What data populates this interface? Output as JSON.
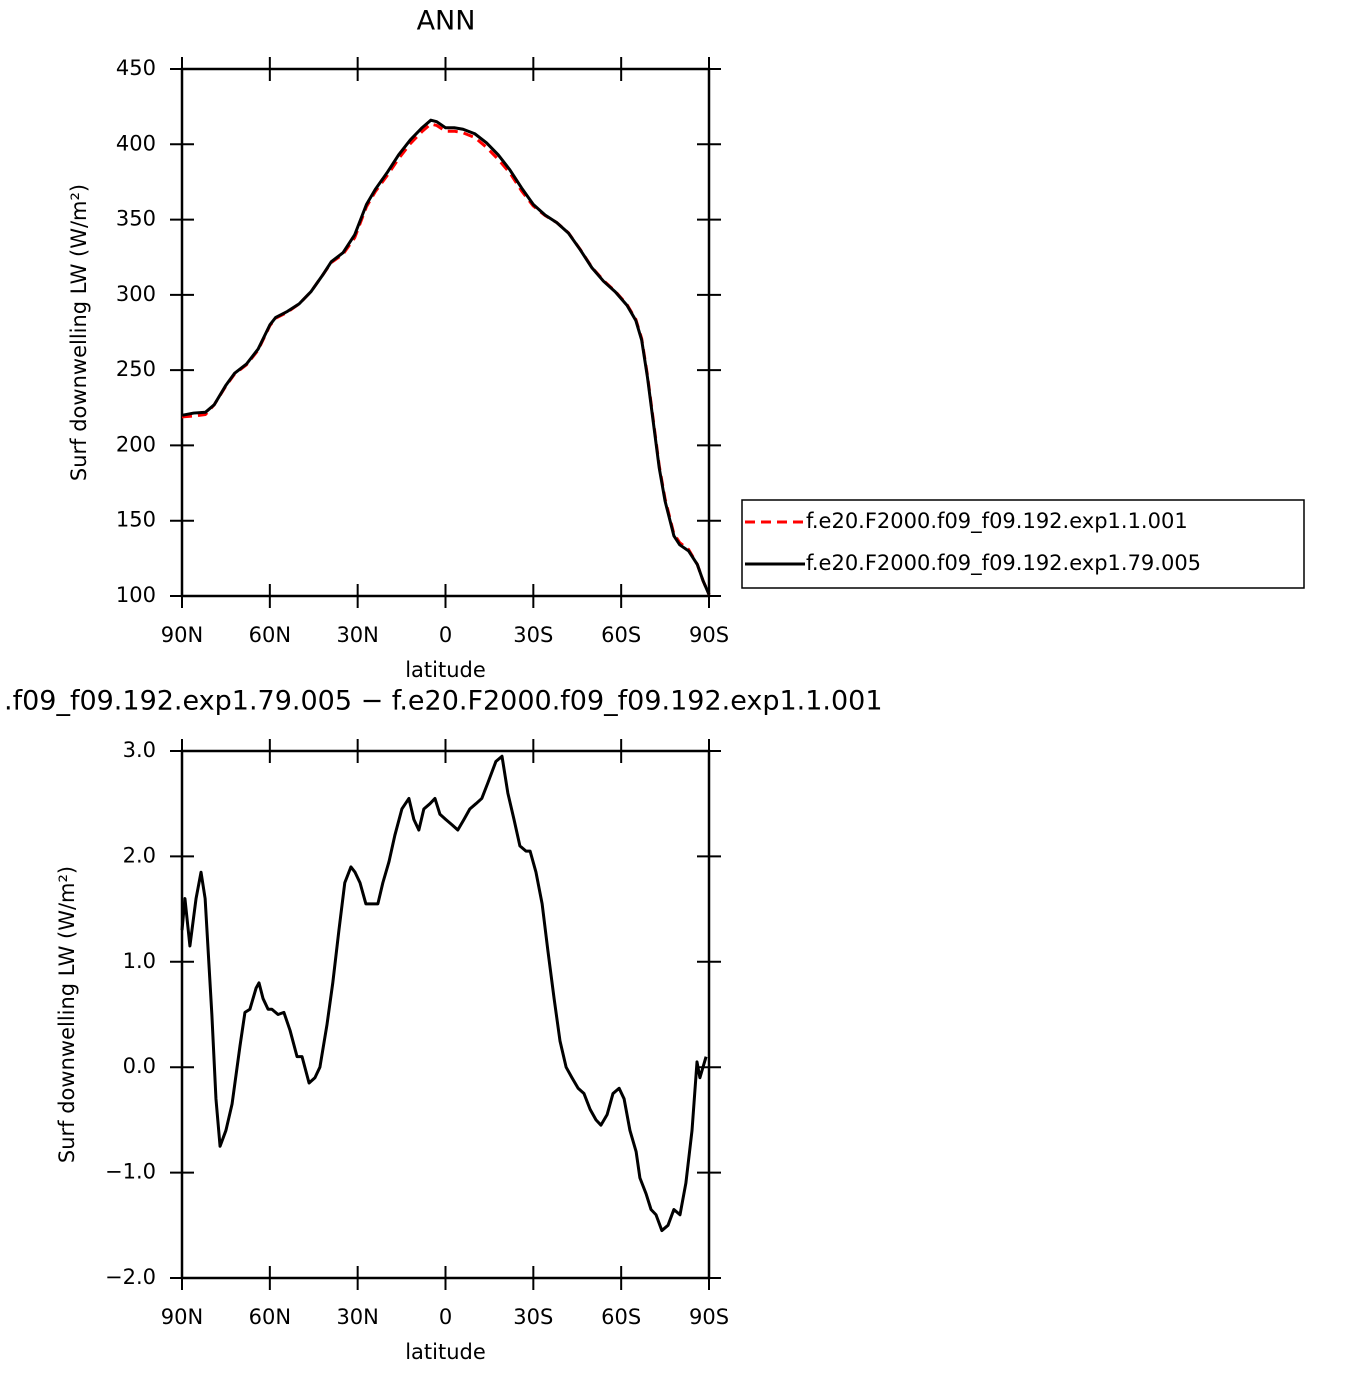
{
  "chart_data": [
    {
      "type": "line",
      "title": "ANN",
      "x_label": "latitude",
      "y_label": "Surf downwelling LW (W/m²)",
      "x": [
        90,
        86,
        82,
        79,
        75,
        72,
        68,
        64,
        60,
        58,
        54,
        50,
        46,
        42,
        39,
        35,
        31,
        27,
        24,
        20,
        16,
        12,
        8,
        5,
        3,
        0,
        -3,
        -6,
        -10,
        -14,
        -18,
        -22,
        -26,
        -30,
        -34,
        -38,
        -42,
        -46,
        -50,
        -54,
        -58,
        -62,
        -65,
        -67,
        -69,
        -71,
        -73,
        -75,
        -78,
        -80,
        -83,
        -86,
        -88,
        -90
      ],
      "series": [
        {
          "name": "f.e20.F2000.f09_f09.192.exp1.1.001",
          "color": "#ff0000",
          "dashed": true,
          "values": [
            219,
            219.5,
            220.5,
            227,
            239.5,
            247.5,
            253.5,
            263.3,
            279.5,
            284.5,
            288.5,
            294,
            302,
            313,
            321.5,
            327,
            338,
            358.5,
            368.5,
            379,
            390.5,
            400.5,
            408.5,
            413.5,
            412.5,
            408.7,
            408.7,
            407.6,
            404.5,
            398,
            390,
            381,
            369,
            359,
            352.7,
            348,
            341.2,
            330.2,
            318.3,
            309.5,
            302.3,
            293.5,
            283.8,
            271,
            246.3,
            216.4,
            186.5,
            164.5,
            141.3,
            135.4,
            131,
            121,
            110,
            101
          ]
        },
        {
          "name": "f.e20.F2000.f09_f09.192.exp1.79.005",
          "color": "#000000",
          "dashed": false,
          "values": [
            220,
            221.5,
            222,
            227,
            240,
            248,
            254,
            264,
            280,
            285,
            289,
            294,
            302,
            313,
            322,
            328,
            340,
            360,
            370,
            381,
            393,
            403,
            411,
            416,
            415,
            411,
            411,
            410,
            407,
            401,
            393,
            383,
            371,
            360,
            353,
            348,
            341,
            330,
            318,
            309,
            302,
            293,
            283,
            270,
            245,
            215,
            185,
            163,
            140,
            134,
            130,
            121,
            110,
            101
          ]
        }
      ],
      "xlim": [
        90,
        -90
      ],
      "xticks": [
        {
          "value": 90,
          "label": "90N"
        },
        {
          "value": 60,
          "label": "60N"
        },
        {
          "value": 30,
          "label": "30N"
        },
        0,
        {
          "value": -30,
          "label": "30S"
        },
        {
          "value": -60,
          "label": "60S"
        },
        {
          "value": -90,
          "label": "90S"
        }
      ],
      "ylim": [
        100,
        450
      ],
      "yticks": [
        100,
        150,
        200,
        250,
        300,
        350,
        400,
        450
      ],
      "legend": "right"
    },
    {
      "type": "line",
      "title": ".f09_f09.192.exp1.79.005 − f.e20.F2000.f09_f09.192.exp1.1.001",
      "x_label": "latitude",
      "y_label": "Surf downwelling LW (W/m²)",
      "x": [
        90,
        89.0,
        87.3,
        85.2,
        83.5,
        82.1,
        79.8,
        78.4,
        77.0,
        75.0,
        72.9,
        70.2,
        68.5,
        66.8,
        64.7,
        63.7,
        62.3,
        60.6,
        59.3,
        57.2,
        55.2,
        53.1,
        50.7,
        49.0,
        46.6,
        44.6,
        42.9,
        40.5,
        38.5,
        36.4,
        34.4,
        32.3,
        30.9,
        29.2,
        27.2,
        25.1,
        23.1,
        21.4,
        19.3,
        17.3,
        14.9,
        12.5,
        10.8,
        9.1,
        7.4,
        5.3,
        3.6,
        1.9,
        -0.1,
        -2.2,
        -4.2,
        -6.3,
        -8.3,
        -10.4,
        -12.4,
        -14.5,
        -17.2,
        -19.3,
        -21.3,
        -23.4,
        -25.4,
        -27.5,
        -28.9,
        -30.9,
        -33.0,
        -35.0,
        -37.1,
        -39.1,
        -41.2,
        -43.2,
        -45.3,
        -47.3,
        -49.4,
        -51.4,
        -53.1,
        -55.2,
        -57.2,
        -59.3,
        -61.0,
        -63.0,
        -65.1,
        -66.4,
        -68.5,
        -70.2,
        -71.9,
        -73.9,
        -76.0,
        -78.0,
        -80.1,
        -82.1,
        -84.2,
        -85.9,
        -86.9,
        -89.0
      ],
      "series": [
        {
          "color": "#000000",
          "dashed": false,
          "values": [
            1.3,
            1.6,
            1.15,
            1.6,
            1.85,
            1.6,
            0.5,
            -0.3,
            -0.75,
            -0.6,
            -0.35,
            0.2,
            0.52,
            0.55,
            0.75,
            0.8,
            0.65,
            0.55,
            0.55,
            0.5,
            0.52,
            0.35,
            0.1,
            0.1,
            -0.15,
            -0.1,
            0.0,
            0.4,
            0.8,
            1.3,
            1.75,
            1.9,
            1.85,
            1.75,
            1.55,
            1.55,
            1.55,
            1.75,
            1.95,
            2.2,
            2.45,
            2.55,
            2.35,
            2.25,
            2.45,
            2.5,
            2.55,
            2.4,
            2.35,
            2.3,
            2.25,
            2.35,
            2.45,
            2.5,
            2.55,
            2.7,
            2.9,
            2.95,
            2.6,
            2.35,
            2.1,
            2.05,
            2.05,
            1.85,
            1.55,
            1.1,
            0.65,
            0.25,
            0.0,
            -0.1,
            -0.2,
            -0.25,
            -0.4,
            -0.5,
            -0.55,
            -0.45,
            -0.25,
            -0.2,
            -0.3,
            -0.6,
            -0.8,
            -1.05,
            -1.2,
            -1.35,
            -1.4,
            -1.55,
            -1.5,
            -1.35,
            -1.4,
            -1.1,
            -0.6,
            0.05,
            -0.1,
            0.1
          ]
        }
      ],
      "xlim": [
        90,
        -90
      ],
      "xticks": [
        {
          "value": 90,
          "label": "90N"
        },
        {
          "value": 60,
          "label": "60N"
        },
        {
          "value": 30,
          "label": "30N"
        },
        0,
        {
          "value": -30,
          "label": "30S"
        },
        {
          "value": -60,
          "label": "60S"
        },
        {
          "value": -90,
          "label": "90S"
        }
      ],
      "ylim": [
        -2,
        3
      ],
      "yticks": [
        {
          "value": -2,
          "label": "−2.0"
        },
        {
          "value": -1,
          "label": "−1.0"
        },
        {
          "value": 0,
          "label": "0.0"
        },
        {
          "value": 1,
          "label": "1.0"
        },
        {
          "value": 2,
          "label": "2.0"
        },
        {
          "value": 3,
          "label": "3.0"
        }
      ]
    }
  ]
}
